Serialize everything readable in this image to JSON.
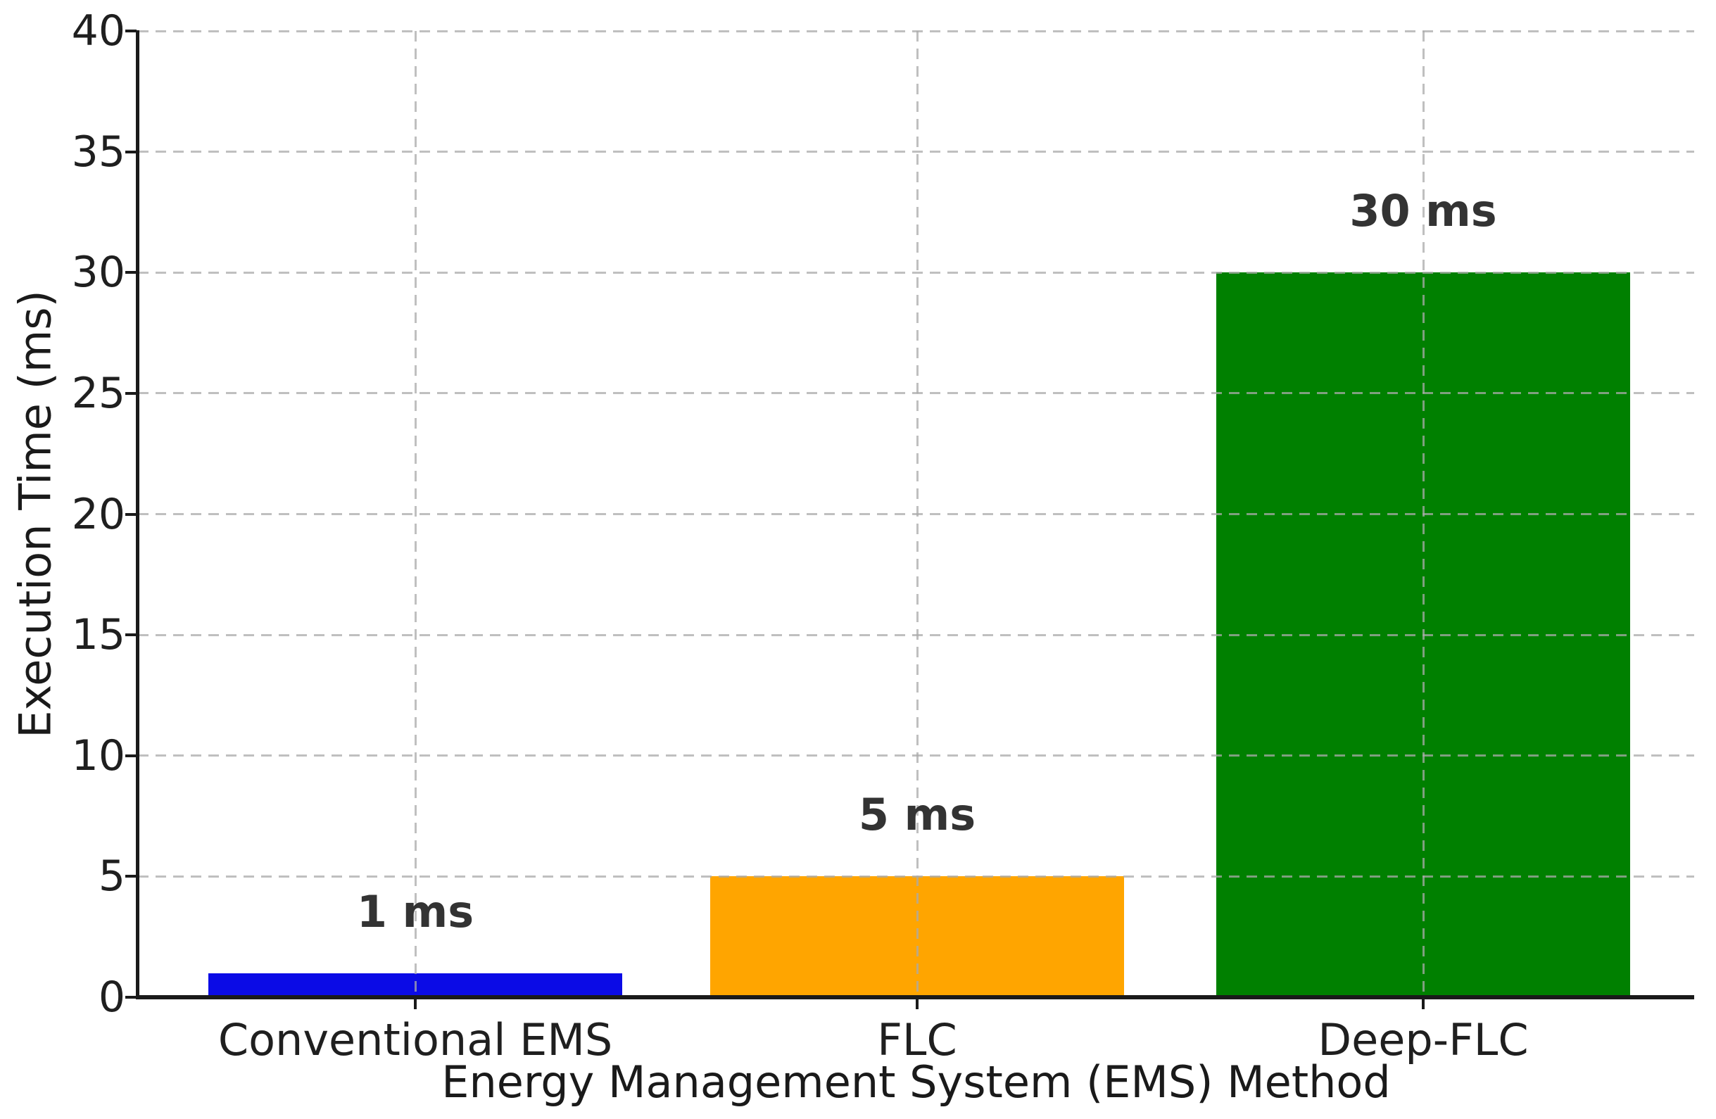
{
  "chart_data": {
    "type": "bar",
    "title": "",
    "categories": [
      "Conventional EMS",
      "FLC",
      "Deep-FLC"
    ],
    "values": [
      1,
      5,
      30
    ],
    "bar_value_labels": [
      "1 ms",
      "5 ms",
      "30 ms"
    ],
    "bar_colors": [
      "#0b0be6",
      "#ffa500",
      "#008000"
    ],
    "xlabel": "Energy Management System (EMS) Method",
    "ylabel": "Execution Time (ms)",
    "ylim": [
      0,
      40
    ],
    "yticks": [
      0,
      5,
      10,
      15,
      20,
      25,
      30,
      35,
      40
    ],
    "grid": {
      "horizontal": true,
      "vertical": true,
      "style": "dashed",
      "drawn_over_bars": true
    },
    "legend_position": "none"
  },
  "colors": {
    "background": "#ffffff",
    "grid": "#c9c9c9",
    "spine": "#1a1a1a",
    "tick_label": "#1f1f1f",
    "value_label": "#333333"
  }
}
